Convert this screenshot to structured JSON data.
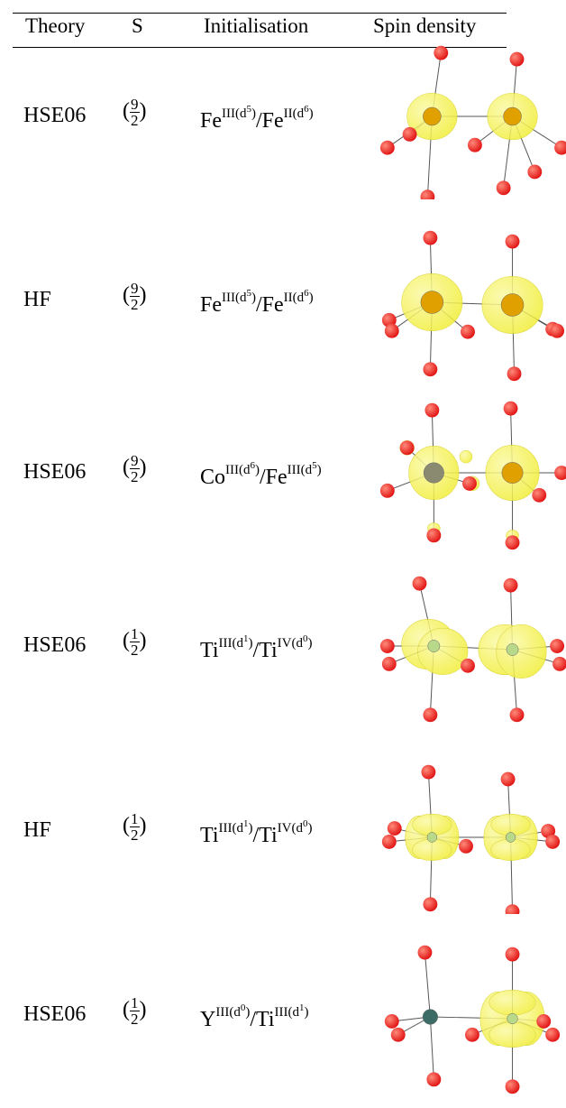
{
  "table": {
    "headers": {
      "theory": "Theory",
      "spin": "S",
      "init": "Initialisation",
      "density": "Spin density"
    },
    "rows": [
      {
        "theory": "HSE06",
        "s_num": "9",
        "s_den": "2",
        "a": "Fe",
        "a_ox": "III(d",
        "a_e": "5",
        "b": "Fe",
        "b_ox": "II(d",
        "b_e": "6",
        "image": "HSE06 Fe(III)/Fe(II) spin density isosurface"
      },
      {
        "theory": "HF",
        "s_num": "9",
        "s_den": "2",
        "a": "Fe",
        "a_ox": "III(d",
        "a_e": "5",
        "b": "Fe",
        "b_ox": "II(d",
        "b_e": "6",
        "image": "HF Fe(III)/Fe(II) spin density isosurface"
      },
      {
        "theory": "HSE06",
        "s_num": "9",
        "s_den": "2",
        "a": "Co",
        "a_ox": "III(d",
        "a_e": "6",
        "b": "Fe",
        "b_ox": "III(d",
        "b_e": "5",
        "image": "HSE06 Co(III)/Fe(III) spin density isosurface"
      },
      {
        "theory": "HSE06",
        "s_num": "1",
        "s_den": "2",
        "a": "Ti",
        "a_ox": "III(d",
        "a_e": "1",
        "b": "Ti",
        "b_ox": "IV(d",
        "b_e": "0",
        "image": "HSE06 Ti(III)/Ti(IV) spin density isosurface"
      },
      {
        "theory": "HF",
        "s_num": "1",
        "s_den": "2",
        "a": "Ti",
        "a_ox": "III(d",
        "a_e": "1",
        "b": "Ti",
        "b_ox": "IV(d",
        "b_e": "0",
        "image": "HF Ti(III)/Ti(IV) spin density isosurface"
      },
      {
        "theory": "HSE06",
        "s_num": "1",
        "s_den": "2",
        "a": "Y",
        "a_ox": "III(d",
        "a_e": "0",
        "b": "Ti",
        "b_ox": "III(d",
        "b_e": "1",
        "image": "HSE06 Y(III)/Ti(III) spin density isosurface"
      }
    ]
  },
  "colors": {
    "oxygen": "#e01010",
    "isosurface": "#f2ee3a",
    "fe_atom": "#e0a000",
    "ti_atom": "#b9d98a",
    "co_atom": "#8a8a70",
    "y_atom": "#3d6b66"
  }
}
